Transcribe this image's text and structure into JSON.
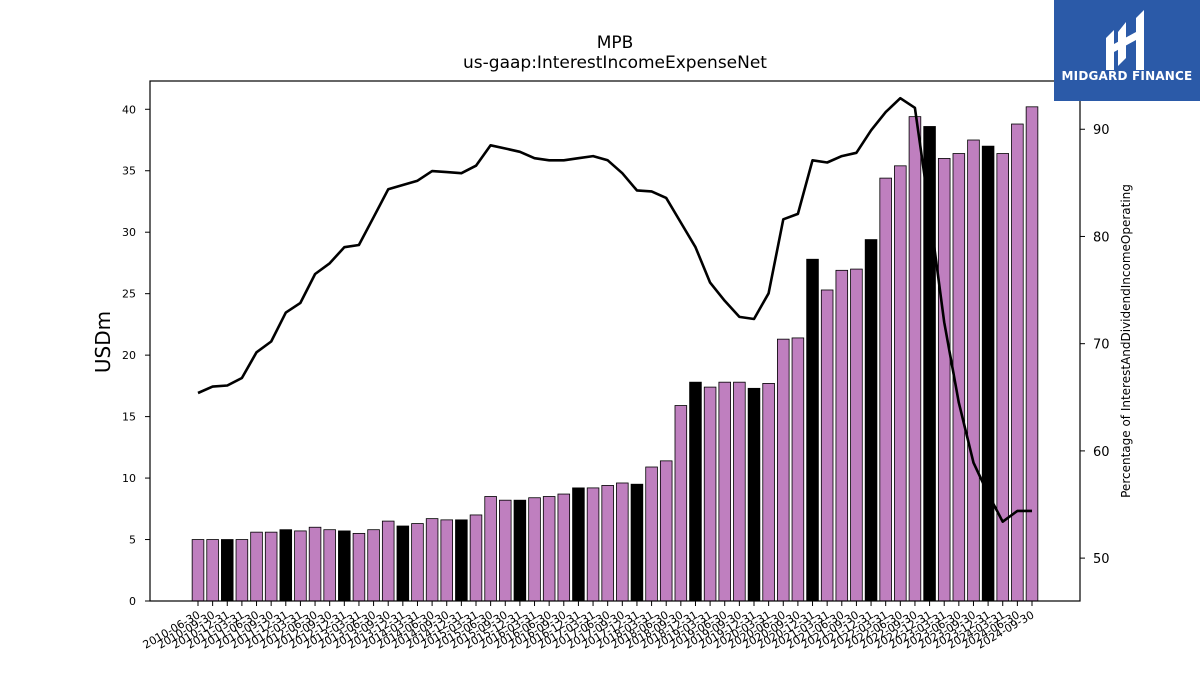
{
  "chart_data": {
    "type": "bar",
    "title": "MPB",
    "subtitle": "us-gaap:InterestIncomeExpenseNet",
    "ylabel": "USDm",
    "y2label": "Percentage of InterestAndDividendIncomeOperating",
    "ylim": [
      0,
      42.3
    ],
    "y2lim": [
      46,
      94.5
    ],
    "yticks": [
      0,
      5,
      10,
      15,
      20,
      25,
      30,
      35,
      40
    ],
    "y2ticks": [
      50,
      60,
      70,
      80,
      90
    ],
    "grid": false,
    "categories": [
      "2010-06-30",
      "2010-09-30",
      "2010-12-31",
      "2011-03-31",
      "2011-06-30",
      "2011-09-30",
      "2011-12-31",
      "2012-03-31",
      "2012-06-30",
      "2012-09-30",
      "2012-12-31",
      "2013-03-31",
      "2013-06-30",
      "2013-09-30",
      "2013-12-31",
      "2014-03-31",
      "2014-06-30",
      "2014-09-30",
      "2014-12-31",
      "2015-03-31",
      "2015-06-30",
      "2015-09-30",
      "2015-12-31",
      "2016-03-31",
      "2016-06-30",
      "2016-09-30",
      "2016-12-31",
      "2017-03-31",
      "2017-06-30",
      "2017-09-30",
      "2017-12-31",
      "2018-03-31",
      "2018-06-30",
      "2018-09-30",
      "2018-12-31",
      "2019-03-31",
      "2019-06-30",
      "2019-09-30",
      "2019-12-31",
      "2020-03-31",
      "2020-06-30",
      "2020-09-30",
      "2020-12-31",
      "2021-03-31",
      "2021-06-30",
      "2021-09-30",
      "2021-12-31",
      "2022-03-31",
      "2022-06-30",
      "2022-09-30",
      "2022-12-31",
      "2023-03-31",
      "2023-06-30",
      "2023-09-30",
      "2023-12-31",
      "2024-03-31",
      "2024-06-30",
      "2024-09-30"
    ],
    "series": [
      {
        "kind": "bar",
        "values": [
          5.0,
          5.0,
          5.0,
          5.0,
          5.6,
          5.6,
          5.8,
          5.7,
          6.0,
          5.8,
          5.7,
          5.5,
          5.8,
          6.5,
          6.1,
          6.3,
          6.7,
          6.6,
          6.6,
          7.0,
          8.5,
          8.2,
          8.2,
          8.4,
          8.5,
          8.7,
          9.2,
          9.2,
          9.4,
          9.6,
          9.5,
          10.9,
          11.4,
          15.9,
          17.8,
          17.4,
          17.8,
          17.8,
          17.3,
          17.7,
          21.3,
          21.4,
          27.8,
          25.3,
          26.9,
          27.0,
          29.4,
          34.4,
          35.4,
          39.4,
          38.6,
          36.0,
          36.4,
          37.5,
          37.0,
          36.4,
          38.8,
          40.2
        ],
        "highlight": [
          2,
          6,
          10,
          14,
          18,
          22,
          26,
          30,
          34,
          38,
          42,
          46,
          50,
          54
        ],
        "color": "#bf7fbf",
        "highlight_color": "#000000"
      },
      {
        "kind": "line",
        "axis": "right",
        "color": "#000000",
        "values": [
          65.4,
          66.0,
          66.1,
          66.8,
          69.2,
          70.2,
          72.9,
          73.8,
          76.5,
          77.5,
          79.0,
          79.2,
          81.8,
          84.4,
          84.8,
          85.2,
          86.1,
          86.0,
          85.9,
          86.6,
          88.5,
          88.2,
          87.9,
          87.3,
          87.1,
          87.1,
          87.3,
          87.5,
          87.1,
          85.9,
          84.3,
          84.2,
          83.6,
          81.3,
          79.0,
          75.7,
          74.0,
          72.5,
          72.3,
          74.7,
          81.6,
          82.1,
          87.1,
          86.9,
          87.5,
          87.8,
          89.9,
          91.6,
          92.9,
          92.0,
          82.3,
          72.0,
          64.5,
          58.9,
          56.0,
          53.4,
          54.4,
          54.4
        ]
      }
    ]
  },
  "logo": {
    "text": "MIDGARD FINANCE",
    "bg_color": "#2b5aa8"
  }
}
